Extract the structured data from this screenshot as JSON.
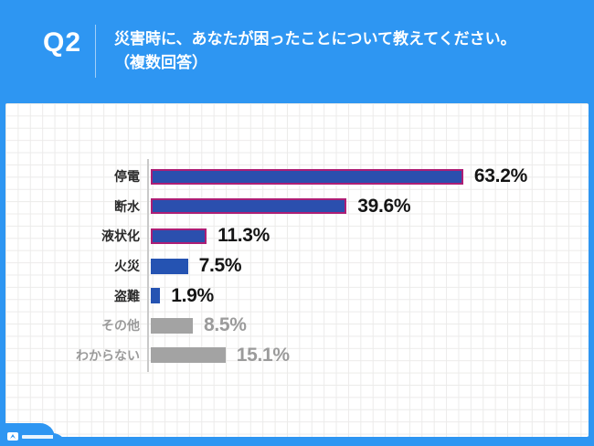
{
  "header": {
    "badge": "Q2",
    "question_line1": "災害時に、あなたが困ったことについて教えてください。",
    "question_line2": "（複数回答）"
  },
  "colors": {
    "background_blue": "#2E96F2",
    "bar_blue": "#2553B2",
    "bar_outline_magenta": "#AD1E75",
    "bar_gray": "#A3A3A3",
    "value_text_dark": "#141414",
    "muted_gray_text": "#9B9B9B",
    "axis_line": "#C9C9C9",
    "grid_line": "#ECEBEA",
    "panel_background": "#FFFFFF"
  },
  "chart_data": {
    "type": "bar",
    "orientation": "horizontal",
    "title": "災害時に、あなたが困ったことについて教えてください。（複数回答）",
    "unit": "%",
    "xlim": [
      0,
      70
    ],
    "grid": true,
    "legend": false,
    "categories": [
      "停電",
      "断水",
      "液状化",
      "火災",
      "盗難",
      "その他",
      "わからない"
    ],
    "values": [
      63.2,
      39.6,
      11.3,
      7.5,
      1.9,
      8.5,
      15.1
    ],
    "items": [
      {
        "label": "停電",
        "value": 63.2,
        "display": "63.2%",
        "style": "blue-outlined"
      },
      {
        "label": "断水",
        "value": 39.6,
        "display": "39.6%",
        "style": "blue-outlined"
      },
      {
        "label": "液状化",
        "value": 11.3,
        "display": "11.3%",
        "style": "blue-outlined"
      },
      {
        "label": "火災",
        "value": 7.5,
        "display": "7.5%",
        "style": "blue"
      },
      {
        "label": "盗難",
        "value": 1.9,
        "display": "1.9%",
        "style": "blue"
      },
      {
        "label": "その他",
        "value": 8.5,
        "display": "8.5%",
        "style": "gray"
      },
      {
        "label": "わからない",
        "value": 15.1,
        "display": "15.1%",
        "style": "gray"
      }
    ]
  }
}
